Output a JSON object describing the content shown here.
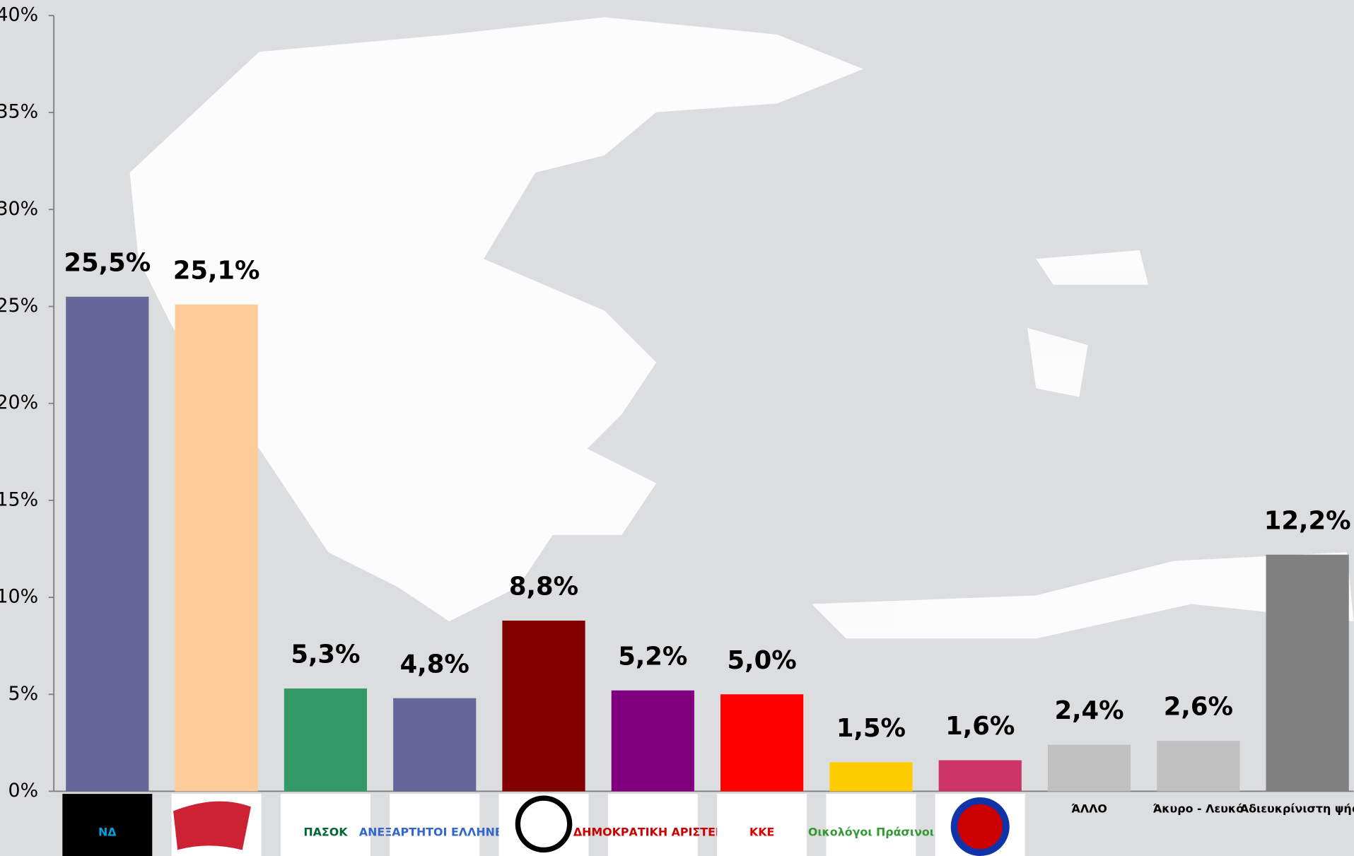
{
  "chart_data": {
    "type": "bar",
    "categories": [
      "ΝΔ",
      null,
      "ΠΑΣΟΚ",
      "ΑΝΕΞΑΡΤΗΤΟΙ ΕΛΛΗΝΕΣ",
      null,
      "ΔΗΜΟΚΡΑΤΙΚΗ ΑΡΙΣΤΕΡΑ",
      "ΚΚΕ",
      "Οικολόγοι Πράσινοι",
      null,
      "ΆΛΛΟ",
      "Άκυρο - Λευκό",
      "Αδιευκρίνιστη ψήφος"
    ],
    "values": [
      25.5,
      25.1,
      5.3,
      4.8,
      8.8,
      5.2,
      5.0,
      1.5,
      1.6,
      2.4,
      2.6,
      12.2
    ],
    "value_labels": [
      "25,5%",
      "25,1%",
      "5,3%",
      "4,8%",
      "8,8%",
      "5,2%",
      "5,0%",
      "1,5%",
      "1,6%",
      "2,4%",
      "2,6%",
      "12,2%"
    ],
    "colors": [
      "#666699",
      "#ffcc99",
      "#339966",
      "#666699",
      "#800000",
      "#800080",
      "#ff0000",
      "#ffcc00",
      "#cc3366",
      "#c0c0c0",
      "#c0c0c0",
      "#808080"
    ],
    "ylim": [
      0,
      40
    ],
    "yticks": [
      {
        "value": 0,
        "label": "0%"
      },
      {
        "value": 5,
        "label": "5%"
      },
      {
        "value": 10,
        "label": "10%"
      },
      {
        "value": 15,
        "label": "15%"
      },
      {
        "value": 20,
        "label": "20%"
      },
      {
        "value": 25,
        "label": "25%"
      },
      {
        "value": 30,
        "label": "30%"
      },
      {
        "value": 35,
        "label": "35%"
      },
      {
        "value": 40,
        "label": "40%"
      }
    ]
  }
}
